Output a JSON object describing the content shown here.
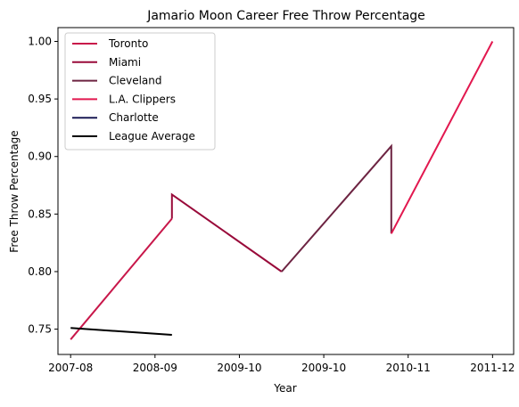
{
  "chart_data": {
    "type": "line",
    "title": "Jamario Moon Career Free Throw Percentage",
    "xlabel": "Year",
    "ylabel": "Free Throw Percentage",
    "x_ticks": [
      "2007-08",
      "2008-09",
      "2009-10",
      "2009-10",
      "2010-11",
      "2011-12"
    ],
    "xlim": [
      -0.15,
      5.25
    ],
    "ylim": [
      0.728,
      1.012
    ],
    "y_ticks": [
      0.75,
      0.8,
      0.85,
      0.9,
      0.95,
      1.0
    ],
    "y_tick_labels": [
      "0.75",
      "0.80",
      "0.85",
      "0.90",
      "0.95",
      "1.00"
    ],
    "grid": false,
    "legend_position": "top-left",
    "series": [
      {
        "name": "Toronto",
        "color": "#c8174a",
        "points": [
          {
            "x": 0,
            "y": 0.741
          },
          {
            "x": 1.2,
            "y": 0.846
          }
        ]
      },
      {
        "name": "Miami",
        "color": "#990a3a",
        "points": [
          {
            "x": 1.2,
            "y": 0.846
          },
          {
            "x": 1.2,
            "y": 0.867
          },
          {
            "x": 2.5,
            "y": 0.8
          }
        ]
      },
      {
        "name": "Cleveland",
        "color": "#6d2442",
        "points": [
          {
            "x": 2.5,
            "y": 0.8
          },
          {
            "x": 3.8,
            "y": 0.909
          },
          {
            "x": 3.8,
            "y": 0.833
          }
        ]
      },
      {
        "name": "L.A. Clippers",
        "color": "#e2184f",
        "points": [
          {
            "x": 3.8,
            "y": 0.833
          },
          {
            "x": 5.0,
            "y": 1.0
          }
        ]
      },
      {
        "name": "Charlotte",
        "color": "#1a1a55",
        "points": []
      },
      {
        "name": "League Average",
        "color": "#000000",
        "points": [
          {
            "x": 0,
            "y": 0.751
          },
          {
            "x": 1.2,
            "y": 0.745
          }
        ]
      }
    ]
  }
}
